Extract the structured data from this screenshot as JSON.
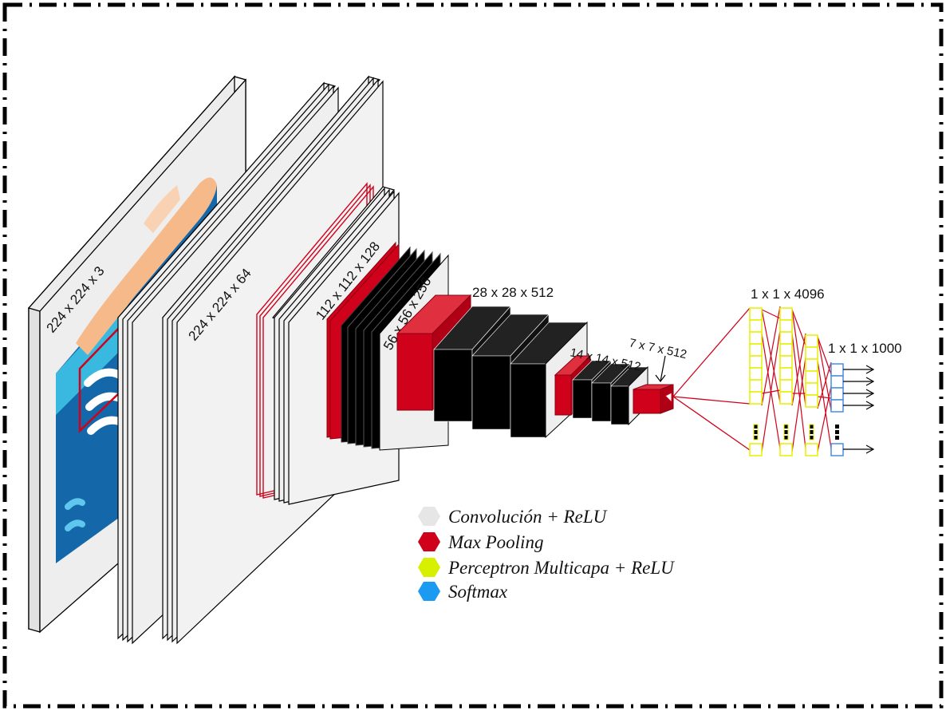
{
  "layers": {
    "input": "224 x 224 x 3",
    "conv1": "224 x 224 x 64",
    "conv2": "112 x 112 x 128",
    "conv3": "56 x 56 x 256",
    "conv4": "28 x 28 x 512",
    "conv5": "14 x 14 x 512",
    "pool5": "7 x 7 x 512",
    "fc": "1 x 1 x 4096",
    "output": "1 x 1 x 1000"
  },
  "legend": [
    {
      "label": "Convolución  +  ReLU",
      "color": "#e6e6e6"
    },
    {
      "label": "Max Pooling",
      "color": "#d0021b"
    },
    {
      "label": "Perceptron Multicapa  +  ReLU",
      "color": "#d6f000"
    },
    {
      "label": "Softmax",
      "color": "#1a9af0"
    }
  ],
  "colors": {
    "conv": "#ececec",
    "pool": "#d0021b",
    "block": "#000000",
    "fc": "#e6f000",
    "softmax": "#4a8ee0",
    "input_skin": "#f6b98a",
    "input_blue": "#1467a8",
    "input_cyan": "#39b8e0"
  }
}
